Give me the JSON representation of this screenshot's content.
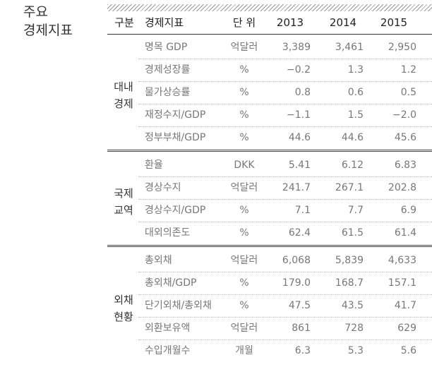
{
  "title": [
    "주요",
    "경제지표"
  ],
  "table": {
    "header": [
      "구분",
      "경제지표",
      "단 위",
      "2013",
      "2014",
      "2015"
    ],
    "groups": [
      {
        "label": [
          "대내",
          "경제"
        ],
        "rows": [
          [
            "명목 GDP",
            "억달러",
            "3,389",
            "3,461",
            "2,950"
          ],
          [
            "경제성장률",
            "%",
            "−0.2",
            "1.3",
            "1.2"
          ],
          [
            "물가상승률",
            "%",
            "0.8",
            "0.6",
            "0.5"
          ],
          [
            "재정수지/GDP",
            "%",
            "−1.1",
            "1.5",
            "−2.0"
          ],
          [
            "정부부채/GDP",
            "%",
            "44.6",
            "44.6",
            "45.6"
          ]
        ]
      },
      {
        "label": [
          "국제",
          "교역"
        ],
        "rows": [
          [
            "환율",
            "DKK",
            "5.41",
            "6.12",
            "6.83"
          ],
          [
            "경상수지",
            "억달러",
            "241.7",
            "267.1",
            "202.8"
          ],
          [
            "경상수지/GDP",
            "%",
            "7.1",
            "7.7",
            "6.9"
          ],
          [
            "대외의존도",
            "%",
            "62.4",
            "61.5",
            "61.4"
          ]
        ]
      },
      {
        "label": [
          "외채",
          "현황"
        ],
        "rows": [
          [
            "총외채",
            "억달러",
            "6,068",
            "5,839",
            "4,633"
          ],
          [
            "총외채/GDP",
            "%",
            "179.0",
            "168.7",
            "157.1"
          ],
          [
            "단기외채/총외채",
            "%",
            "47.5",
            "43.5",
            "41.7"
          ],
          [
            "외환보유액",
            "억달러",
            "861",
            "728",
            "629"
          ],
          [
            "수입개월수",
            "개월",
            "6.3",
            "5.3",
            "5.6"
          ]
        ]
      }
    ]
  }
}
